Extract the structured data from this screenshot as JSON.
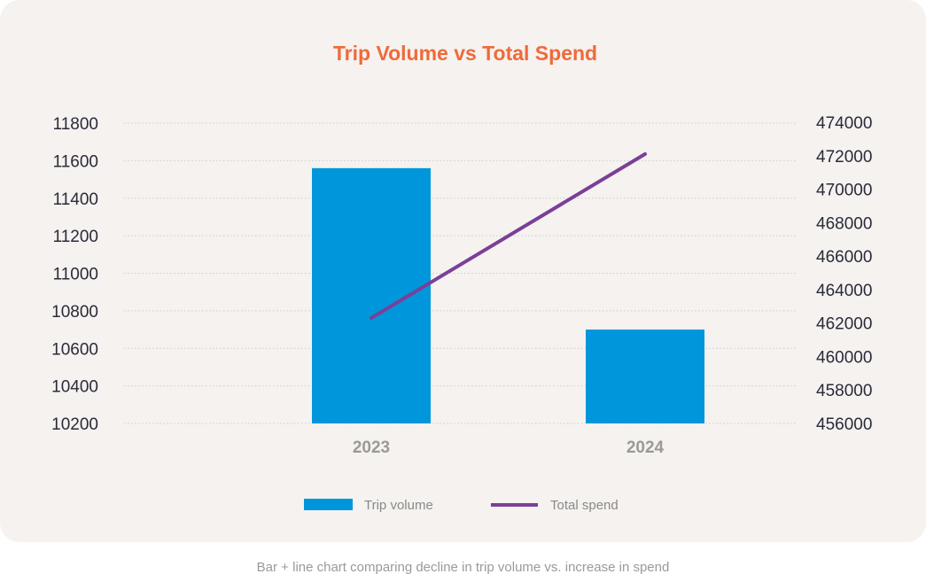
{
  "chart_data": {
    "type": "bar+line",
    "title": "Trip Volume vs Total Spend",
    "categories": [
      "2023",
      "2024"
    ],
    "series": [
      {
        "name": "Trip volume",
        "type": "bar",
        "axis": "left",
        "values": [
          11560,
          10700
        ],
        "color": "#0096db"
      },
      {
        "name": "Total spend",
        "type": "line",
        "axis": "right",
        "values": [
          462300,
          472100
        ],
        "color": "#7b3f98"
      }
    ],
    "y_left": {
      "range": [
        10200,
        11800
      ],
      "ticks": [
        "11800",
        "11600",
        "11400",
        "11200",
        "11000",
        "10800",
        "10600",
        "10400",
        "10200"
      ]
    },
    "y_right": {
      "range": [
        456000,
        474000
      ],
      "ticks": [
        "474000",
        "472000",
        "470000",
        "468000",
        "466000",
        "464000",
        "462000",
        "460000",
        "458000",
        "456000"
      ]
    },
    "grid": true,
    "legend": "bottom"
  },
  "caption": "Bar + line chart comparing decline in trip volume vs. increase in spend"
}
